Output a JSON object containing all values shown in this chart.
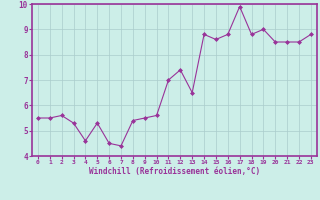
{
  "x": [
    0,
    1,
    2,
    3,
    4,
    5,
    6,
    7,
    8,
    9,
    10,
    11,
    12,
    13,
    14,
    15,
    16,
    17,
    18,
    19,
    20,
    21,
    22,
    23
  ],
  "y": [
    5.5,
    5.5,
    5.6,
    5.3,
    4.6,
    5.3,
    4.5,
    4.4,
    5.4,
    5.5,
    5.6,
    7.0,
    7.4,
    6.5,
    8.8,
    8.6,
    8.8,
    9.9,
    8.8,
    9.0,
    8.5,
    8.5,
    8.5,
    8.8
  ],
  "line_color": "#993399",
  "marker": "D",
  "marker_size": 2,
  "bg_color": "#cceee8",
  "grid_color": "#aacccc",
  "xlabel": "Windchill (Refroidissement éolien,°C)",
  "ylabel": "",
  "ylim": [
    4,
    10
  ],
  "xlim_min": -0.5,
  "xlim_max": 23.5,
  "yticks": [
    4,
    5,
    6,
    7,
    8,
    9,
    10
  ],
  "xticks": [
    0,
    1,
    2,
    3,
    4,
    5,
    6,
    7,
    8,
    9,
    10,
    11,
    12,
    13,
    14,
    15,
    16,
    17,
    18,
    19,
    20,
    21,
    22,
    23
  ],
  "tick_label_color": "#993399",
  "xlabel_color": "#993399",
  "axis_color": "#993399",
  "spine_color": "#993399"
}
